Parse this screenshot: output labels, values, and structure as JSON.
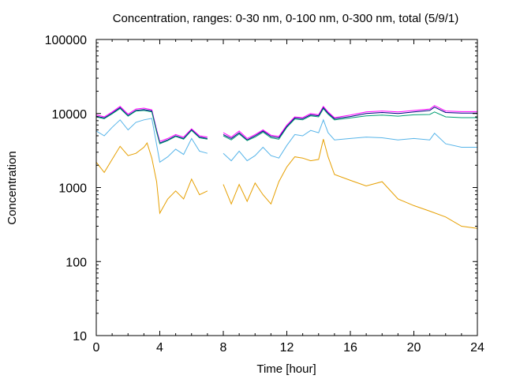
{
  "chart_data": {
    "type": "line",
    "title": "Concentration, ranges: 0-30 nm, 0-100 nm, 0-300 nm, total (5/9/1)",
    "xlabel": "Time [hour]",
    "ylabel": "Concentration",
    "xlim": [
      0,
      24
    ],
    "ylim": [
      10,
      100000
    ],
    "yscale": "log",
    "grid": false,
    "legend": "none",
    "x_ticks": [
      "0",
      "4",
      "8",
      "12",
      "16",
      "20",
      "24"
    ],
    "y_ticks": [
      "10",
      "100",
      "1000",
      "10000",
      "100000"
    ],
    "series": [
      {
        "color": "#ff00ff",
        "points": [
          [
            0,
            9600
          ],
          [
            0.5,
            9000
          ],
          [
            1,
            10500
          ],
          [
            1.5,
            12500
          ],
          [
            2,
            9800
          ],
          [
            2.5,
            11500
          ],
          [
            3,
            11800
          ],
          [
            3.5,
            11200
          ],
          [
            3.8,
            6000
          ],
          [
            4,
            4200
          ],
          [
            4.5,
            4600
          ],
          [
            5,
            5200
          ],
          [
            5.5,
            4800
          ],
          [
            6,
            6200
          ],
          [
            6.5,
            5000
          ],
          [
            7,
            4800
          ],
          [
            7.05,
            null
          ],
          [
            8,
            5500
          ],
          [
            8.5,
            4800
          ],
          [
            9,
            5800
          ],
          [
            9.5,
            4600
          ],
          [
            10,
            5200
          ],
          [
            10.5,
            6000
          ],
          [
            11,
            5100
          ],
          [
            11.5,
            4900
          ],
          [
            12,
            7000
          ],
          [
            12.5,
            9000
          ],
          [
            13,
            8800
          ],
          [
            13.5,
            10000
          ],
          [
            14,
            9600
          ],
          [
            14.3,
            12500
          ],
          [
            14.6,
            10500
          ],
          [
            15,
            8800
          ],
          [
            16,
            9500
          ],
          [
            17,
            10500
          ],
          [
            18,
            10800
          ],
          [
            19,
            10500
          ],
          [
            20,
            11000
          ],
          [
            21,
            11500
          ],
          [
            21.3,
            12800
          ],
          [
            22,
            10800
          ],
          [
            23,
            10600
          ],
          [
            24,
            10600
          ]
        ]
      },
      {
        "color": "#000080",
        "points": [
          [
            0,
            9200
          ],
          [
            0.5,
            8700
          ],
          [
            1,
            10100
          ],
          [
            1.5,
            12000
          ],
          [
            2,
            9400
          ],
          [
            2.5,
            11000
          ],
          [
            3,
            11300
          ],
          [
            3.5,
            10800
          ],
          [
            3.8,
            5800
          ],
          [
            4,
            4000
          ],
          [
            4.5,
            4400
          ],
          [
            5,
            5000
          ],
          [
            5.5,
            4600
          ],
          [
            6,
            6000
          ],
          [
            6.5,
            4800
          ],
          [
            7,
            4600
          ],
          [
            7.05,
            null
          ],
          [
            8,
            5200
          ],
          [
            8.5,
            4600
          ],
          [
            9,
            5500
          ],
          [
            9.5,
            4400
          ],
          [
            10,
            5000
          ],
          [
            10.5,
            5800
          ],
          [
            11,
            4900
          ],
          [
            11.5,
            4700
          ],
          [
            12,
            6700
          ],
          [
            12.5,
            8700
          ],
          [
            13,
            8500
          ],
          [
            13.5,
            9600
          ],
          [
            14,
            9300
          ],
          [
            14.3,
            12000
          ],
          [
            14.6,
            10100
          ],
          [
            15,
            8500
          ],
          [
            16,
            9100
          ],
          [
            17,
            10000
          ],
          [
            18,
            10300
          ],
          [
            19,
            10000
          ],
          [
            20,
            10500
          ],
          [
            21,
            11000
          ],
          [
            21.3,
            12200
          ],
          [
            22,
            10300
          ],
          [
            23,
            10100
          ],
          [
            24,
            10100
          ]
        ]
      },
      {
        "color": "#009e73",
        "points": [
          [
            0,
            9000
          ],
          [
            0.5,
            8500
          ],
          [
            1,
            9900
          ],
          [
            1.5,
            11700
          ],
          [
            2,
            9200
          ],
          [
            2.5,
            10800
          ],
          [
            3,
            11000
          ],
          [
            3.5,
            10500
          ],
          [
            3.8,
            5600
          ],
          [
            4,
            3900
          ],
          [
            4.5,
            4300
          ],
          [
            5,
            4900
          ],
          [
            5.5,
            4500
          ],
          [
            6,
            5900
          ],
          [
            6.5,
            4700
          ],
          [
            7,
            4500
          ],
          [
            7.05,
            null
          ],
          [
            8,
            5000
          ],
          [
            8.5,
            4400
          ],
          [
            9,
            5300
          ],
          [
            9.5,
            4300
          ],
          [
            10,
            4800
          ],
          [
            10.5,
            5600
          ],
          [
            11,
            4700
          ],
          [
            11.5,
            4500
          ],
          [
            12,
            6500
          ],
          [
            12.5,
            8400
          ],
          [
            13,
            8200
          ],
          [
            13.5,
            9300
          ],
          [
            14,
            9000
          ],
          [
            14.3,
            11600
          ],
          [
            14.6,
            9800
          ],
          [
            15,
            8200
          ],
          [
            16,
            8700
          ],
          [
            17,
            9300
          ],
          [
            18,
            9500
          ],
          [
            19,
            9200
          ],
          [
            20,
            9600
          ],
          [
            21,
            9700
          ],
          [
            21.3,
            10500
          ],
          [
            22,
            9000
          ],
          [
            23,
            8800
          ],
          [
            24,
            8800
          ]
        ]
      },
      {
        "color": "#56b4e9",
        "points": [
          [
            0,
            5800
          ],
          [
            0.5,
            5000
          ],
          [
            1,
            6500
          ],
          [
            1.5,
            8200
          ],
          [
            2,
            6000
          ],
          [
            2.5,
            7600
          ],
          [
            3,
            8200
          ],
          [
            3.5,
            8600
          ],
          [
            3.8,
            3800
          ],
          [
            4,
            2200
          ],
          [
            4.5,
            2600
          ],
          [
            5,
            3300
          ],
          [
            5.5,
            2800
          ],
          [
            6,
            4600
          ],
          [
            6.5,
            3100
          ],
          [
            7,
            2900
          ],
          [
            7.05,
            null
          ],
          [
            8,
            2900
          ],
          [
            8.5,
            2300
          ],
          [
            9,
            3100
          ],
          [
            9.5,
            2300
          ],
          [
            10,
            2700
          ],
          [
            10.5,
            3500
          ],
          [
            11,
            2700
          ],
          [
            11.5,
            2500
          ],
          [
            12,
            3700
          ],
          [
            12.5,
            5200
          ],
          [
            13,
            5000
          ],
          [
            13.5,
            5900
          ],
          [
            14,
            5500
          ],
          [
            14.3,
            8200
          ],
          [
            14.6,
            5500
          ],
          [
            15,
            4400
          ],
          [
            16,
            4600
          ],
          [
            17,
            4800
          ],
          [
            18,
            4700
          ],
          [
            19,
            4400
          ],
          [
            20,
            4600
          ],
          [
            21,
            4400
          ],
          [
            21.3,
            5400
          ],
          [
            22,
            3900
          ],
          [
            23,
            3500
          ],
          [
            24,
            3500
          ]
        ]
      },
      {
        "color": "#e69f00",
        "points": [
          [
            0,
            2200
          ],
          [
            0.5,
            1600
          ],
          [
            1,
            2400
          ],
          [
            1.5,
            3600
          ],
          [
            2,
            2700
          ],
          [
            2.5,
            2900
          ],
          [
            3,
            3500
          ],
          [
            3.2,
            4000
          ],
          [
            3.5,
            2500
          ],
          [
            3.8,
            1200
          ],
          [
            4,
            450
          ],
          [
            4.5,
            700
          ],
          [
            5,
            900
          ],
          [
            5.5,
            700
          ],
          [
            6,
            1300
          ],
          [
            6.5,
            800
          ],
          [
            7,
            900
          ],
          [
            7.05,
            null
          ],
          [
            8,
            1100
          ],
          [
            8.5,
            600
          ],
          [
            9,
            1100
          ],
          [
            9.5,
            650
          ],
          [
            10,
            1150
          ],
          [
            10.5,
            800
          ],
          [
            11,
            600
          ],
          [
            11.5,
            1200
          ],
          [
            12,
            1900
          ],
          [
            12.5,
            2600
          ],
          [
            13,
            2500
          ],
          [
            13.5,
            2300
          ],
          [
            14,
            2400
          ],
          [
            14.3,
            4500
          ],
          [
            14.6,
            2600
          ],
          [
            15,
            1500
          ],
          [
            16,
            1250
          ],
          [
            17,
            1050
          ],
          [
            18,
            1200
          ],
          [
            19,
            700
          ],
          [
            20,
            570
          ],
          [
            21,
            480
          ],
          [
            22,
            400
          ],
          [
            23,
            300
          ],
          [
            24,
            280
          ]
        ]
      }
    ]
  }
}
